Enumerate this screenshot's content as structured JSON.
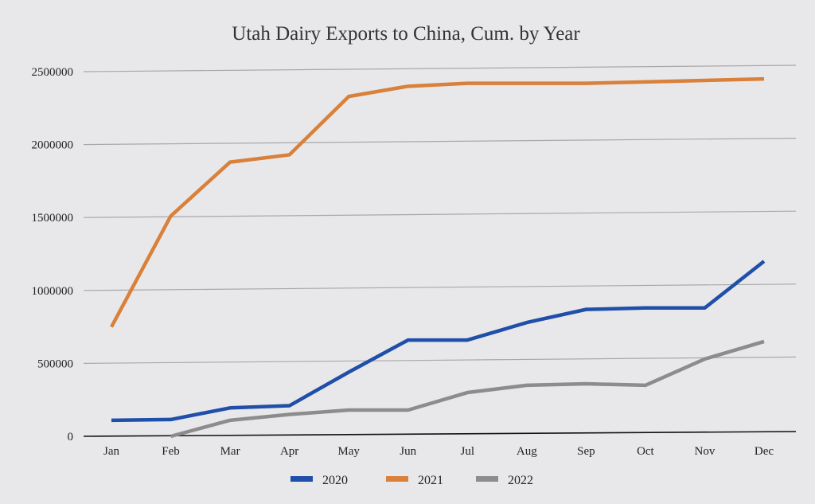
{
  "chart_data": {
    "type": "line",
    "title": "Utah Dairy Exports to China, Cum. by Year",
    "xlabel": "",
    "ylabel": "",
    "categories": [
      "Jan",
      "Feb",
      "Mar",
      "Apr",
      "May",
      "Jun",
      "Jul",
      "Aug",
      "Sep",
      "Oct",
      "Nov",
      "Dec"
    ],
    "ylim": [
      0,
      2500000
    ],
    "yticks": [
      "0",
      "500000",
      "1000000",
      "1500000",
      "2000000",
      "2500000"
    ],
    "grid": true,
    "legend": "bottom",
    "series": [
      {
        "name": "2020",
        "color": "#1f4fa8",
        "values": [
          110000,
          115000,
          195000,
          210000,
          440000,
          660000,
          660000,
          780000,
          870000,
          880000,
          880000,
          1200000
        ]
      },
      {
        "name": "2021",
        "color": "#d9803a",
        "values": [
          750000,
          1510000,
          1880000,
          1930000,
          2330000,
          2400000,
          2420000,
          2420000,
          2420000,
          2430000,
          2440000,
          2450000
        ]
      },
      {
        "name": "2022",
        "color": "#8c8c8c",
        "values": [
          null,
          0,
          110000,
          150000,
          180000,
          180000,
          300000,
          350000,
          360000,
          350000,
          530000,
          650000
        ]
      }
    ]
  }
}
